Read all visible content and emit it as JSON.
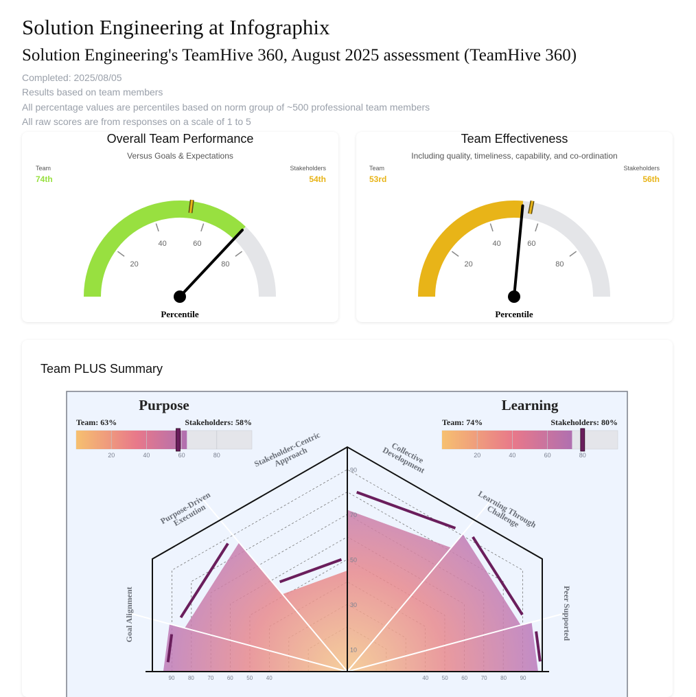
{
  "header": {
    "title": "Solution Engineering at Infographix",
    "subtitle": "Solution Engineering's TeamHive 360, August 2025 assessment (TeamHive 360)",
    "meta": [
      "Completed: 2025/08/05",
      "Results based on team members",
      "All percentage values are percentiles based on norm group of ~500 professional team members",
      "All raw scores are from responses on a scale of 1 to 5"
    ]
  },
  "colors": {
    "green": "#98e040",
    "gold": "#e8b418",
    "grey_track": "#e4e5e8",
    "purple": "#6a1e5c"
  },
  "gauges": [
    {
      "title": "Overall Team Performance",
      "subtitle": "Versus Goals & Expectations",
      "team_label": "Team",
      "team_value_text": "74th",
      "team_value": 74,
      "stakeholders_label": "Stakeholders",
      "stakeholders_value_text": "54th",
      "stakeholders_value": 54,
      "fill_color": "#98e040",
      "team_text_color": "#98e040",
      "stake_text_color": "#e8b418",
      "ticks": [
        "20",
        "40",
        "60",
        "80"
      ],
      "axis_label": "Percentile"
    },
    {
      "title": "Team Effectiveness",
      "subtitle": "Including quality, timeliness, capability, and co-ordination",
      "team_label": "Team",
      "team_value_text": "53rd",
      "team_value": 53,
      "stakeholders_label": "Stakeholders",
      "stakeholders_value_text": "56th",
      "stakeholders_value": 56,
      "fill_color": "#e8b418",
      "team_text_color": "#e8b418",
      "stake_text_color": "#e8b418",
      "ticks": [
        "20",
        "40",
        "60",
        "80"
      ],
      "axis_label": "Percentile"
    }
  ],
  "summary": {
    "title": "Team PLUS Summary",
    "purpose": {
      "label": "Purpose",
      "team_text": "Team: 63%",
      "stake_text": "Stakeholders: 58%",
      "team": 63,
      "stakeholders": 58,
      "ticks": [
        "20",
        "40",
        "60",
        "80"
      ]
    },
    "learning": {
      "label": "Learning",
      "team_text": "Team: 74%",
      "stake_text": "Stakeholders: 80%",
      "team": 74,
      "stakeholders": 80,
      "ticks": [
        "20",
        "40",
        "60",
        "80"
      ]
    }
  },
  "chart_data": {
    "type": "radar",
    "title": "Team PLUS Summary",
    "axis_ticks": [
      "90",
      "70",
      "50",
      "30",
      "10"
    ],
    "baseline_ticks": [
      "90",
      "80",
      "70",
      "60",
      "50",
      "40"
    ],
    "segments": [
      {
        "label": "Goal Alignment",
        "team": 82,
        "stakeholders": 80
      },
      {
        "label": "Purpose-Driven Execution",
        "team": 75,
        "stakeholders": 78
      },
      {
        "label": "Stakeholder-Centric Approach",
        "team": 45,
        "stakeholders": 50
      },
      {
        "label": "Collective Development",
        "team": 72,
        "stakeholders": 80
      },
      {
        "label": "Learning Through Challenge",
        "team": 80,
        "stakeholders": 82
      },
      {
        "label": "Peer Supported",
        "team": 85,
        "stakeholders": 86
      }
    ]
  }
}
